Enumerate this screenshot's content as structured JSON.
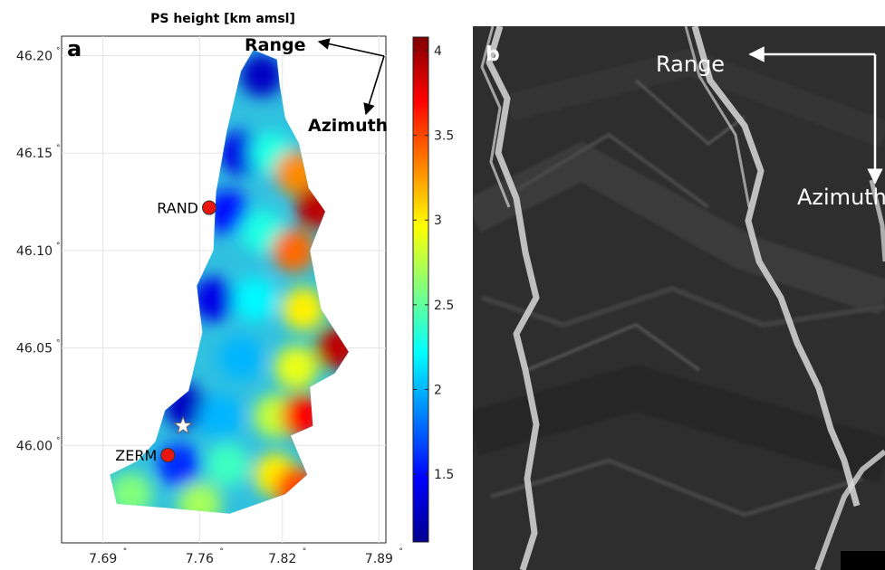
{
  "chart_data": {
    "panel_a": {
      "type": "scatter",
      "title": "PS height [km amsl]",
      "panel_label": "a",
      "xlabel": "",
      "ylabel": "",
      "x_ticks": [
        "7.69",
        "7.76",
        "7.82",
        "7.89"
      ],
      "x_tick_values": [
        7.69,
        7.76,
        7.82,
        7.89
      ],
      "y_ticks": [
        "46.20",
        "46.15",
        "46.10",
        "46.05",
        "46.00"
      ],
      "y_tick_values": [
        46.2,
        46.15,
        46.1,
        46.05,
        46.0
      ],
      "degree_symbol": "°",
      "xlim": [
        7.66,
        7.895
      ],
      "ylim": [
        45.95,
        46.21
      ],
      "grid": true,
      "colorbar": {
        "ticks": [
          "1.5",
          "2",
          "2.5",
          "3",
          "3.5",
          "4"
        ],
        "tick_values": [
          1.5,
          2,
          2.5,
          3,
          3.5,
          4
        ],
        "range": [
          1.1,
          4.08
        ],
        "colormap": "jet"
      },
      "direction_labels": {
        "range": "Range",
        "azimuth": "Azimuth"
      },
      "stations": [
        {
          "name": "RAND",
          "lon": 7.767,
          "lat": 46.122,
          "color": "#e8160f"
        },
        {
          "name": "ZERM",
          "lon": 7.737,
          "lat": 45.995,
          "color": "#e8160f"
        }
      ],
      "star_marker": {
        "lon": 7.748,
        "lat": 46.01
      },
      "ps_cluster_outline": [
        [
          7.799,
          46.203
        ],
        [
          7.816,
          46.198
        ],
        [
          7.818,
          46.185
        ],
        [
          7.822,
          46.168
        ],
        [
          7.832,
          46.155
        ],
        [
          7.839,
          46.132
        ],
        [
          7.851,
          46.12
        ],
        [
          7.84,
          46.1
        ],
        [
          7.848,
          46.07
        ],
        [
          7.868,
          46.048
        ],
        [
          7.858,
          46.037
        ],
        [
          7.84,
          46.03
        ],
        [
          7.842,
          46.01
        ],
        [
          7.826,
          46.005
        ],
        [
          7.838,
          45.985
        ],
        [
          7.822,
          45.975
        ],
        [
          7.782,
          45.965
        ],
        [
          7.735,
          45.968
        ],
        [
          7.7,
          45.97
        ],
        [
          7.695,
          45.985
        ],
        [
          7.715,
          45.992
        ],
        [
          7.728,
          46.002
        ],
        [
          7.735,
          46.018
        ],
        [
          7.752,
          46.028
        ],
        [
          7.762,
          46.058
        ],
        [
          7.758,
          46.082
        ],
        [
          7.77,
          46.1
        ],
        [
          7.772,
          46.13
        ],
        [
          7.78,
          46.162
        ],
        [
          7.79,
          46.192
        ]
      ],
      "height_zones": [
        {
          "lon": 7.805,
          "lat": 46.19,
          "height": 1.3
        },
        {
          "lon": 7.79,
          "lat": 46.15,
          "height": 1.4
        },
        {
          "lon": 7.812,
          "lat": 46.15,
          "height": 2.3
        },
        {
          "lon": 7.83,
          "lat": 46.14,
          "height": 3.3
        },
        {
          "lon": 7.845,
          "lat": 46.122,
          "height": 3.9
        },
        {
          "lon": 7.78,
          "lat": 46.12,
          "height": 1.5
        },
        {
          "lon": 7.805,
          "lat": 46.11,
          "height": 2.3
        },
        {
          "lon": 7.828,
          "lat": 46.1,
          "height": 3.4
        },
        {
          "lon": 7.77,
          "lat": 46.075,
          "height": 1.4
        },
        {
          "lon": 7.8,
          "lat": 46.075,
          "height": 2.2
        },
        {
          "lon": 7.835,
          "lat": 46.07,
          "height": 3.0
        },
        {
          "lon": 7.86,
          "lat": 46.05,
          "height": 3.9
        },
        {
          "lon": 7.79,
          "lat": 46.045,
          "height": 2.0
        },
        {
          "lon": 7.83,
          "lat": 46.04,
          "height": 2.9
        },
        {
          "lon": 7.75,
          "lat": 46.02,
          "height": 1.3
        },
        {
          "lon": 7.775,
          "lat": 46.015,
          "height": 2.0
        },
        {
          "lon": 7.815,
          "lat": 46.015,
          "height": 2.8
        },
        {
          "lon": 7.835,
          "lat": 46.015,
          "height": 3.7
        },
        {
          "lon": 7.745,
          "lat": 45.99,
          "height": 1.6
        },
        {
          "lon": 7.78,
          "lat": 45.99,
          "height": 2.4
        },
        {
          "lon": 7.815,
          "lat": 45.985,
          "height": 3.0
        },
        {
          "lon": 7.83,
          "lat": 45.978,
          "height": 3.5
        },
        {
          "lon": 7.71,
          "lat": 45.975,
          "height": 2.6
        },
        {
          "lon": 7.76,
          "lat": 45.97,
          "height": 2.7
        }
      ]
    },
    "panel_b": {
      "type": "image",
      "panel_label": "b",
      "direction_labels": {
        "range": "Range",
        "azimuth": "Azimuth"
      }
    }
  }
}
